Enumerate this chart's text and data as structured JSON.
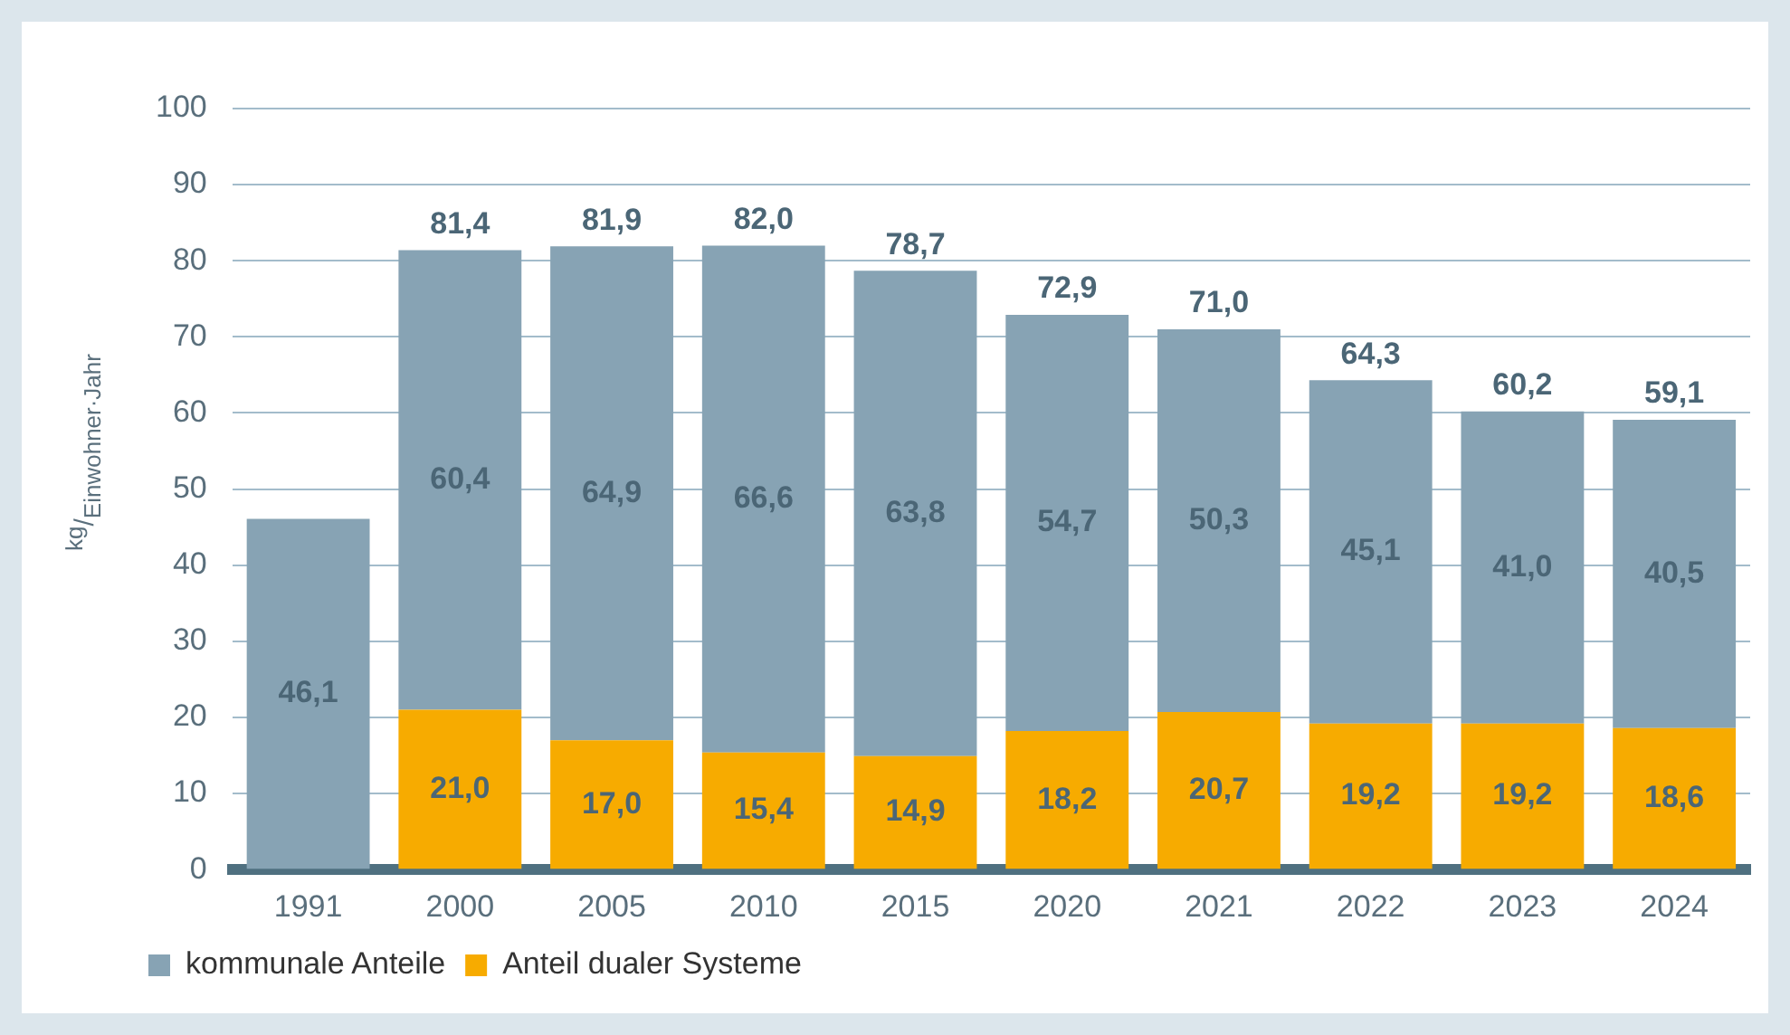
{
  "chart_data": {
    "type": "bar",
    "stacked": true,
    "ylabel": "$^{kg}$/$_{Einwohner·Jahr}$",
    "categories": [
      "1991",
      "2000",
      "2005",
      "2010",
      "2015",
      "2020",
      "2021",
      "2022",
      "2023",
      "2024"
    ],
    "series": [
      {
        "name": "Anteil dualer Systeme",
        "color": "#f7ab00",
        "values": [
          null,
          21.0,
          17.0,
          15.4,
          14.9,
          18.2,
          20.7,
          19.2,
          19.2,
          18.6
        ],
        "value_labels": [
          null,
          "21,0",
          "17,0",
          "15,4",
          "14,9",
          "18,2",
          "20,7",
          "19,2",
          "19,2",
          "18,6"
        ]
      },
      {
        "name": "kommunale Anteile",
        "color": "#87a3b4",
        "values": [
          46.1,
          60.4,
          64.9,
          66.6,
          63.8,
          54.7,
          50.3,
          45.1,
          41.0,
          40.5
        ],
        "value_labels": [
          "46,1",
          "60,4",
          "64,9",
          "66,6",
          "63,8",
          "54,7",
          "50,3",
          "45,1",
          "41,0",
          "40,5"
        ]
      }
    ],
    "totals": [
      null,
      "81,4",
      "81,9",
      "82,0",
      "78,7",
      "72,9",
      "71,0",
      "64,3",
      "60,2",
      "59,1"
    ],
    "ylim": [
      0,
      100
    ],
    "yticks": [
      0,
      10,
      20,
      30,
      40,
      50,
      60,
      70,
      80,
      90,
      100
    ],
    "grid": "y",
    "legend": "bottom left"
  }
}
